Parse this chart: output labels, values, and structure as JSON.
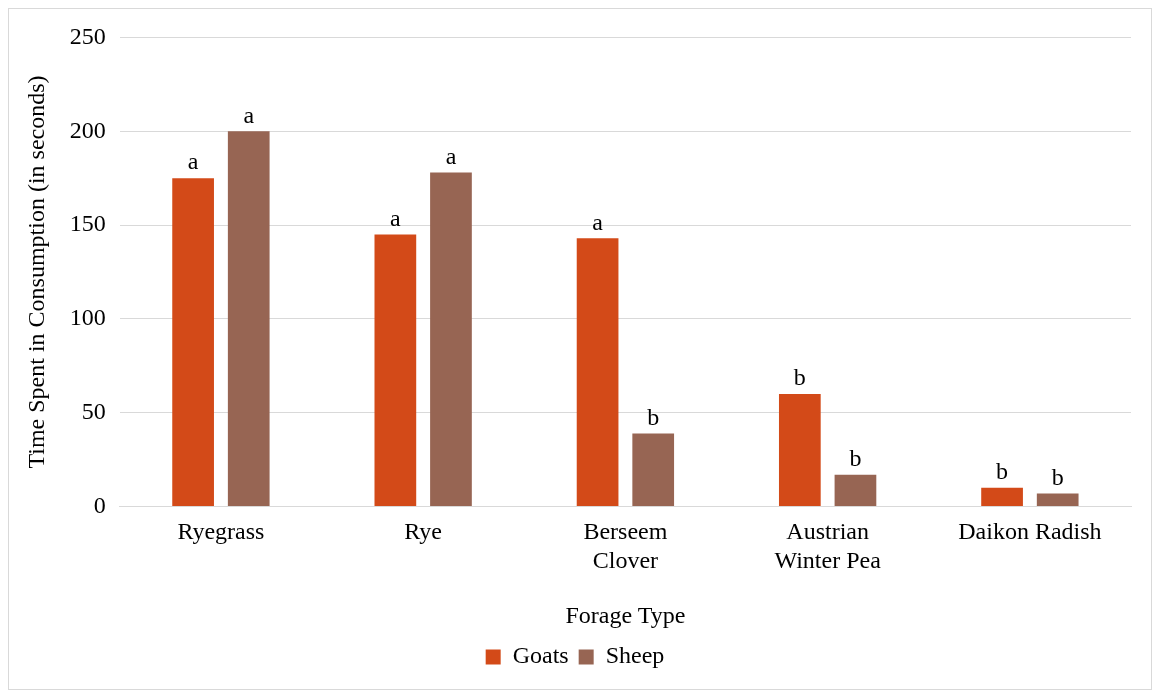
{
  "chart_data": {
    "type": "bar",
    "xlabel": "Forage Type",
    "ylabel": "Time Spent in Consumption (in seconds)",
    "categories": [
      "Ryegrass",
      "Rye",
      "Berseem Clover",
      "Austrian Winter Pea",
      "Daikon Radish"
    ],
    "series": [
      {
        "name": "Goats",
        "color": "#d34a18",
        "values": [
          175,
          145,
          143,
          60,
          10
        ],
        "value_labels": [
          "a",
          "a",
          "a",
          "b",
          "b"
        ]
      },
      {
        "name": "Sheep",
        "color": "#976553",
        "values": [
          200,
          178,
          39,
          17,
          7
        ],
        "value_labels": [
          "a",
          "a",
          "b",
          "b",
          "b"
        ]
      }
    ],
    "ylim": [
      0,
      250
    ],
    "yticks": [
      0,
      50,
      100,
      150,
      200,
      250
    ],
    "grid": "y",
    "legend": "bottom"
  }
}
